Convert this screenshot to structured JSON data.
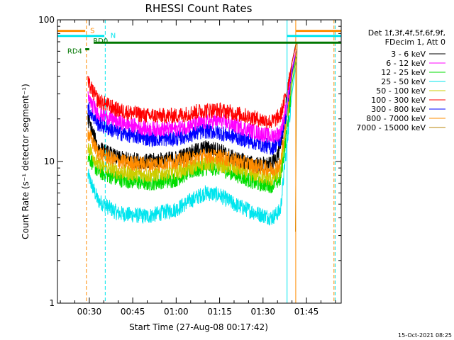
{
  "chart_data": {
    "type": "line",
    "title": "RHESSI Count Rates",
    "xlabel": "Start Time (27-Aug-08 00:17:42)",
    "ylabel": "Count Rate (s⁻¹ detector segment⁻¹)",
    "y_scale": "log",
    "ylim": [
      1,
      100
    ],
    "xlim_minutes": [
      19,
      117
    ],
    "x_ticks": [
      {
        "minute": 30,
        "label": "00:30"
      },
      {
        "minute": 45,
        "label": "00:45"
      },
      {
        "minute": 60,
        "label": "01:00"
      },
      {
        "minute": 75,
        "label": "01:15"
      },
      {
        "minute": 90,
        "label": "01:30"
      },
      {
        "minute": 105,
        "label": "01:45"
      }
    ],
    "y_ticks": [
      {
        "value": 1,
        "label": "1"
      },
      {
        "value": 10,
        "label": "10"
      },
      {
        "value": 100,
        "label": "100"
      }
    ],
    "data_start_minute": 29.5,
    "data_end_minute": 101.5,
    "legend_header": [
      "Det 1f,3f,4f,5f,6f,9f,",
      "FDecim 1, Att 0"
    ],
    "series": [
      {
        "name": "3 - 6 keV",
        "color": "#000000",
        "points": [
          [
            29.5,
            20.0
          ],
          [
            33,
            12.5
          ],
          [
            40,
            10.5
          ],
          [
            50,
            10.0
          ],
          [
            60,
            10.5
          ],
          [
            65,
            11.5
          ],
          [
            70,
            12.5
          ],
          [
            75,
            12.0
          ],
          [
            80,
            10.5
          ],
          [
            88,
            9.5
          ],
          [
            93,
            9.5
          ],
          [
            96,
            12.0
          ],
          [
            98,
            25.0
          ],
          [
            100,
            50.0
          ],
          [
            101.5,
            70.0
          ]
        ]
      },
      {
        "name": "6 - 12 keV",
        "color": "#ff00ff",
        "points": [
          [
            29.5,
            28.0
          ],
          [
            33,
            22.0
          ],
          [
            40,
            19.0
          ],
          [
            50,
            17.0
          ],
          [
            60,
            17.0
          ],
          [
            65,
            18.0
          ],
          [
            70,
            19.0
          ],
          [
            75,
            19.5
          ],
          [
            80,
            18.0
          ],
          [
            88,
            16.0
          ],
          [
            93,
            15.0
          ],
          [
            96,
            16.0
          ],
          [
            98,
            24.0
          ],
          [
            100,
            45.0
          ],
          [
            101.5,
            62.0
          ]
        ]
      },
      {
        "name": "12 - 25 keV",
        "color": "#00dd00",
        "points": [
          [
            29.5,
            11.0
          ],
          [
            33,
            8.5
          ],
          [
            40,
            7.5
          ],
          [
            50,
            7.0
          ],
          [
            60,
            7.5
          ],
          [
            65,
            8.5
          ],
          [
            70,
            9.0
          ],
          [
            75,
            9.0
          ],
          [
            80,
            8.2
          ],
          [
            88,
            7.0
          ],
          [
            93,
            6.8
          ],
          [
            96,
            7.5
          ],
          [
            98,
            15.0
          ],
          [
            100,
            35.0
          ],
          [
            101.5,
            55.0
          ]
        ]
      },
      {
        "name": "25 - 50 keV",
        "color": "#00e5ee",
        "points": [
          [
            29.5,
            8.0
          ],
          [
            33,
            5.3
          ],
          [
            40,
            4.3
          ],
          [
            50,
            4.1
          ],
          [
            60,
            4.6
          ],
          [
            65,
            5.3
          ],
          [
            70,
            6.0
          ],
          [
            75,
            5.8
          ],
          [
            80,
            5.0
          ],
          [
            88,
            4.3
          ],
          [
            93,
            4.0
          ],
          [
            96,
            4.5
          ],
          [
            98,
            12.0
          ],
          [
            100,
            30.0
          ],
          [
            101.5,
            50.0
          ]
        ]
      },
      {
        "name": "50 - 100 keV",
        "color": "#cccc00",
        "points": [
          [
            29.5,
            13.0
          ],
          [
            33,
            9.5
          ],
          [
            40,
            8.5
          ],
          [
            50,
            8.0
          ],
          [
            60,
            8.5
          ],
          [
            65,
            9.0
          ],
          [
            70,
            9.8
          ],
          [
            75,
            9.5
          ],
          [
            80,
            9.0
          ],
          [
            88,
            8.0
          ],
          [
            93,
            7.5
          ],
          [
            96,
            8.5
          ],
          [
            98,
            18.0
          ],
          [
            100,
            40.0
          ],
          [
            101.5,
            58.0
          ]
        ]
      },
      {
        "name": "100 - 300 keV",
        "color": "#ff0000",
        "points": [
          [
            29.5,
            36.0
          ],
          [
            33,
            27.0
          ],
          [
            40,
            23.0
          ],
          [
            50,
            21.0
          ],
          [
            60,
            21.0
          ],
          [
            65,
            22.0
          ],
          [
            70,
            23.0
          ],
          [
            75,
            23.0
          ],
          [
            80,
            22.0
          ],
          [
            88,
            20.0
          ],
          [
            93,
            19.0
          ],
          [
            96,
            21.0
          ],
          [
            98,
            30.0
          ],
          [
            100,
            50.0
          ],
          [
            101.5,
            68.0
          ]
        ]
      },
      {
        "name": "300 - 800 keV",
        "color": "#0000ff",
        "points": [
          [
            29.5,
            24.0
          ],
          [
            33,
            18.5
          ],
          [
            40,
            16.0
          ],
          [
            50,
            14.5
          ],
          [
            60,
            14.5
          ],
          [
            65,
            15.5
          ],
          [
            70,
            16.5
          ],
          [
            75,
            16.0
          ],
          [
            80,
            15.0
          ],
          [
            88,
            13.5
          ],
          [
            93,
            12.5
          ],
          [
            96,
            14.0
          ],
          [
            98,
            22.0
          ],
          [
            100,
            42.0
          ],
          [
            101.5,
            60.0
          ]
        ]
      },
      {
        "name": "800 - 7000 keV",
        "color": "#ff8c00",
        "points": [
          [
            29.5,
            16.0
          ],
          [
            33,
            11.5
          ],
          [
            40,
            10.0
          ],
          [
            50,
            9.5
          ],
          [
            60,
            10.0
          ],
          [
            65,
            10.5
          ],
          [
            70,
            11.0
          ],
          [
            75,
            10.8
          ],
          [
            80,
            10.2
          ],
          [
            88,
            9.2
          ],
          [
            93,
            8.8
          ],
          [
            96,
            9.5
          ],
          [
            98,
            20.0
          ],
          [
            100,
            42.0
          ],
          [
            101.5,
            60.0
          ]
        ]
      },
      {
        "name": "7000 - 15000 keV",
        "color": "#b8860b",
        "points": [
          [
            101.2,
            3.2
          ],
          [
            101.4,
            12.0
          ],
          [
            101.6,
            40.0
          ],
          [
            101.8,
            70.0
          ]
        ]
      }
    ],
    "annotations": {
      "vertical_lines": [
        {
          "minute": 29.0,
          "color": "#ff8c00",
          "style": "dashed"
        },
        {
          "minute": 35.5,
          "color": "#00e5ee",
          "style": "dashed"
        },
        {
          "minute": 98.3,
          "color": "#00e5ee",
          "style": "solid"
        },
        {
          "minute": 101.3,
          "color": "#ff8c00",
          "style": "solid"
        },
        {
          "minute": 114.5,
          "color": "#ff8c00",
          "style": "dashed"
        },
        {
          "minute": 114.9,
          "color": "#00e5ee",
          "style": "dashed"
        }
      ],
      "flag_bars": [
        {
          "label": "S",
          "color": "#ff8c00",
          "value": 83.5,
          "segments": [
            [
              19,
              28.6
            ],
            [
              101.3,
              117
            ]
          ],
          "label_minute": 30.3
        },
        {
          "label": "N",
          "color": "#00e5ee",
          "value": 77.0,
          "segments": [
            [
              19,
              35.2
            ],
            [
              98.3,
              117
            ]
          ],
          "label_minute": 37.3
        },
        {
          "label": "RD0",
          "color": "#007700",
          "value": 69.0,
          "segments": [
            [
              31.5,
              117
            ]
          ],
          "label_minute": 31.3
        },
        {
          "label": "RD4",
          "color": "#007700",
          "value": 62.0,
          "segments": [
            [
              28.6,
              30.0
            ]
          ],
          "label_minute": 22.4
        }
      ]
    }
  },
  "footer": {
    "timestamp": "15-Oct-2021 08:25"
  }
}
